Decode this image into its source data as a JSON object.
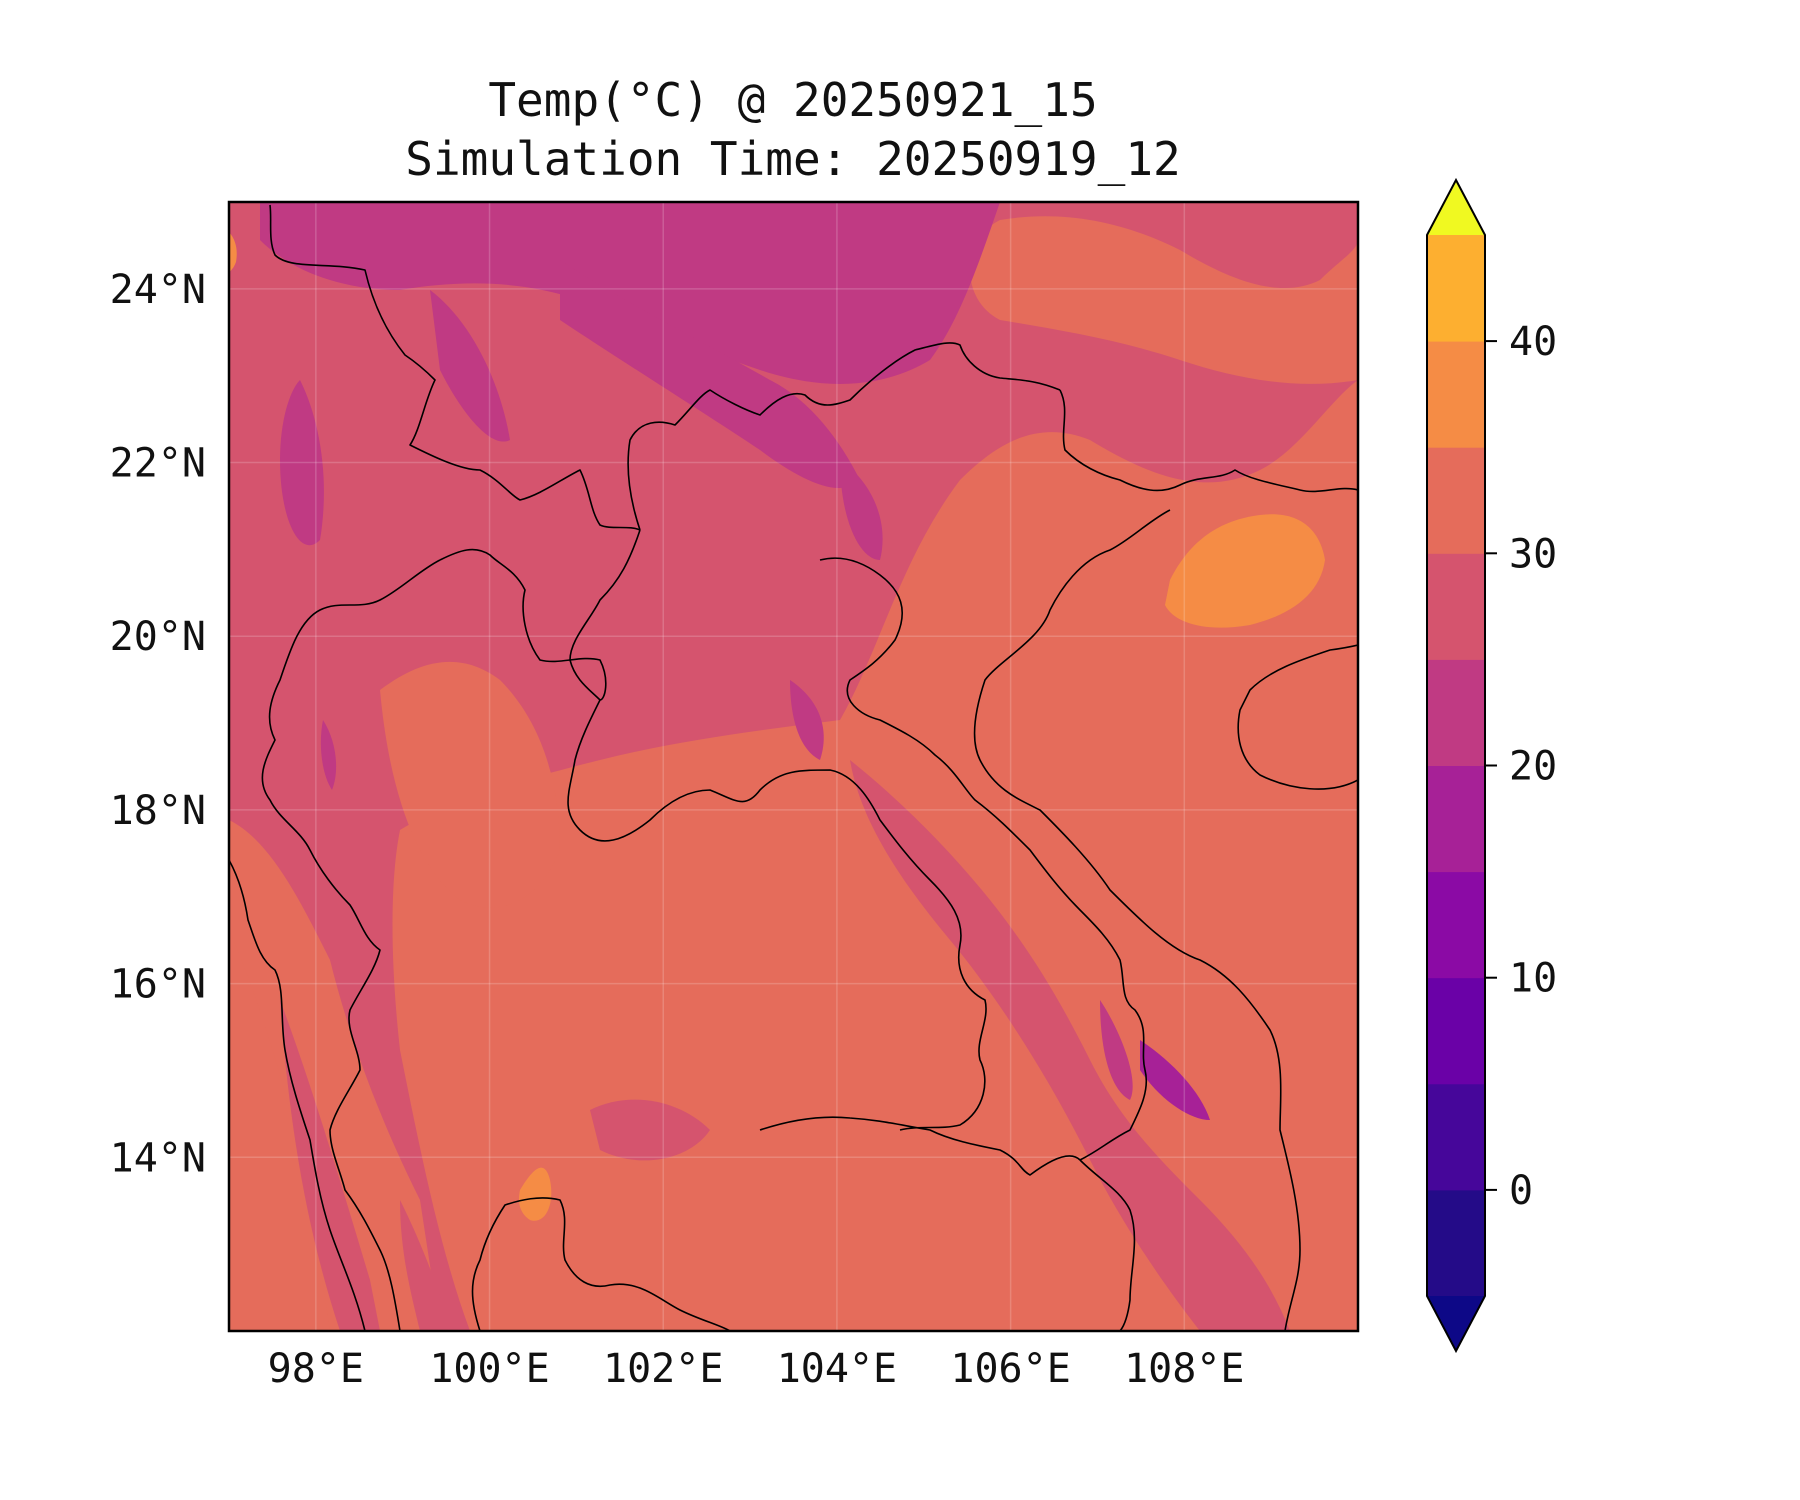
{
  "title": {
    "line1": "Temp(°C) @ 20250921_15",
    "line2": "Simulation Time: 20250919_12"
  },
  "map": {
    "lon_range": [
      97,
      110
    ],
    "lat_range": [
      12,
      25
    ],
    "x_ticks": [
      {
        "value": 98,
        "label": "98°E"
      },
      {
        "value": 100,
        "label": "100°E"
      },
      {
        "value": 102,
        "label": "102°E"
      },
      {
        "value": 104,
        "label": "104°E"
      },
      {
        "value": 106,
        "label": "106°E"
      },
      {
        "value": 108,
        "label": "108°E"
      }
    ],
    "y_ticks": [
      {
        "value": 24,
        "label": "24°N"
      },
      {
        "value": 22,
        "label": "22°N"
      },
      {
        "value": 20,
        "label": "20°N"
      },
      {
        "value": 18,
        "label": "18°N"
      },
      {
        "value": 16,
        "label": "16°N"
      },
      {
        "value": 14,
        "label": "14°N"
      }
    ],
    "gridlines": true
  },
  "colorbar": {
    "levels": [
      -5,
      0,
      5,
      10,
      15,
      20,
      25,
      30,
      35,
      40,
      45
    ],
    "colors": [
      "#240b88",
      "#46069a",
      "#6a01a7",
      "#8b0aa5",
      "#a72197",
      "#c03a83",
      "#d5546e",
      "#e56c5b",
      "#f58c45",
      "#fdaf30",
      "#f6d626"
    ],
    "under_color": "#0d0887",
    "over_color": "#f0f921",
    "ticks": [
      {
        "value": 0,
        "label": "0"
      },
      {
        "value": 10,
        "label": "10"
      },
      {
        "value": 20,
        "label": "20"
      },
      {
        "value": 30,
        "label": "30"
      },
      {
        "value": 40,
        "label": "40"
      }
    ],
    "extend": "both"
  },
  "field_colors": {
    "cool": "#c03a83",
    "mid": "#d5546e",
    "warm": "#e56c5b",
    "hot": "#f58c45",
    "purple": "#a72197"
  }
}
